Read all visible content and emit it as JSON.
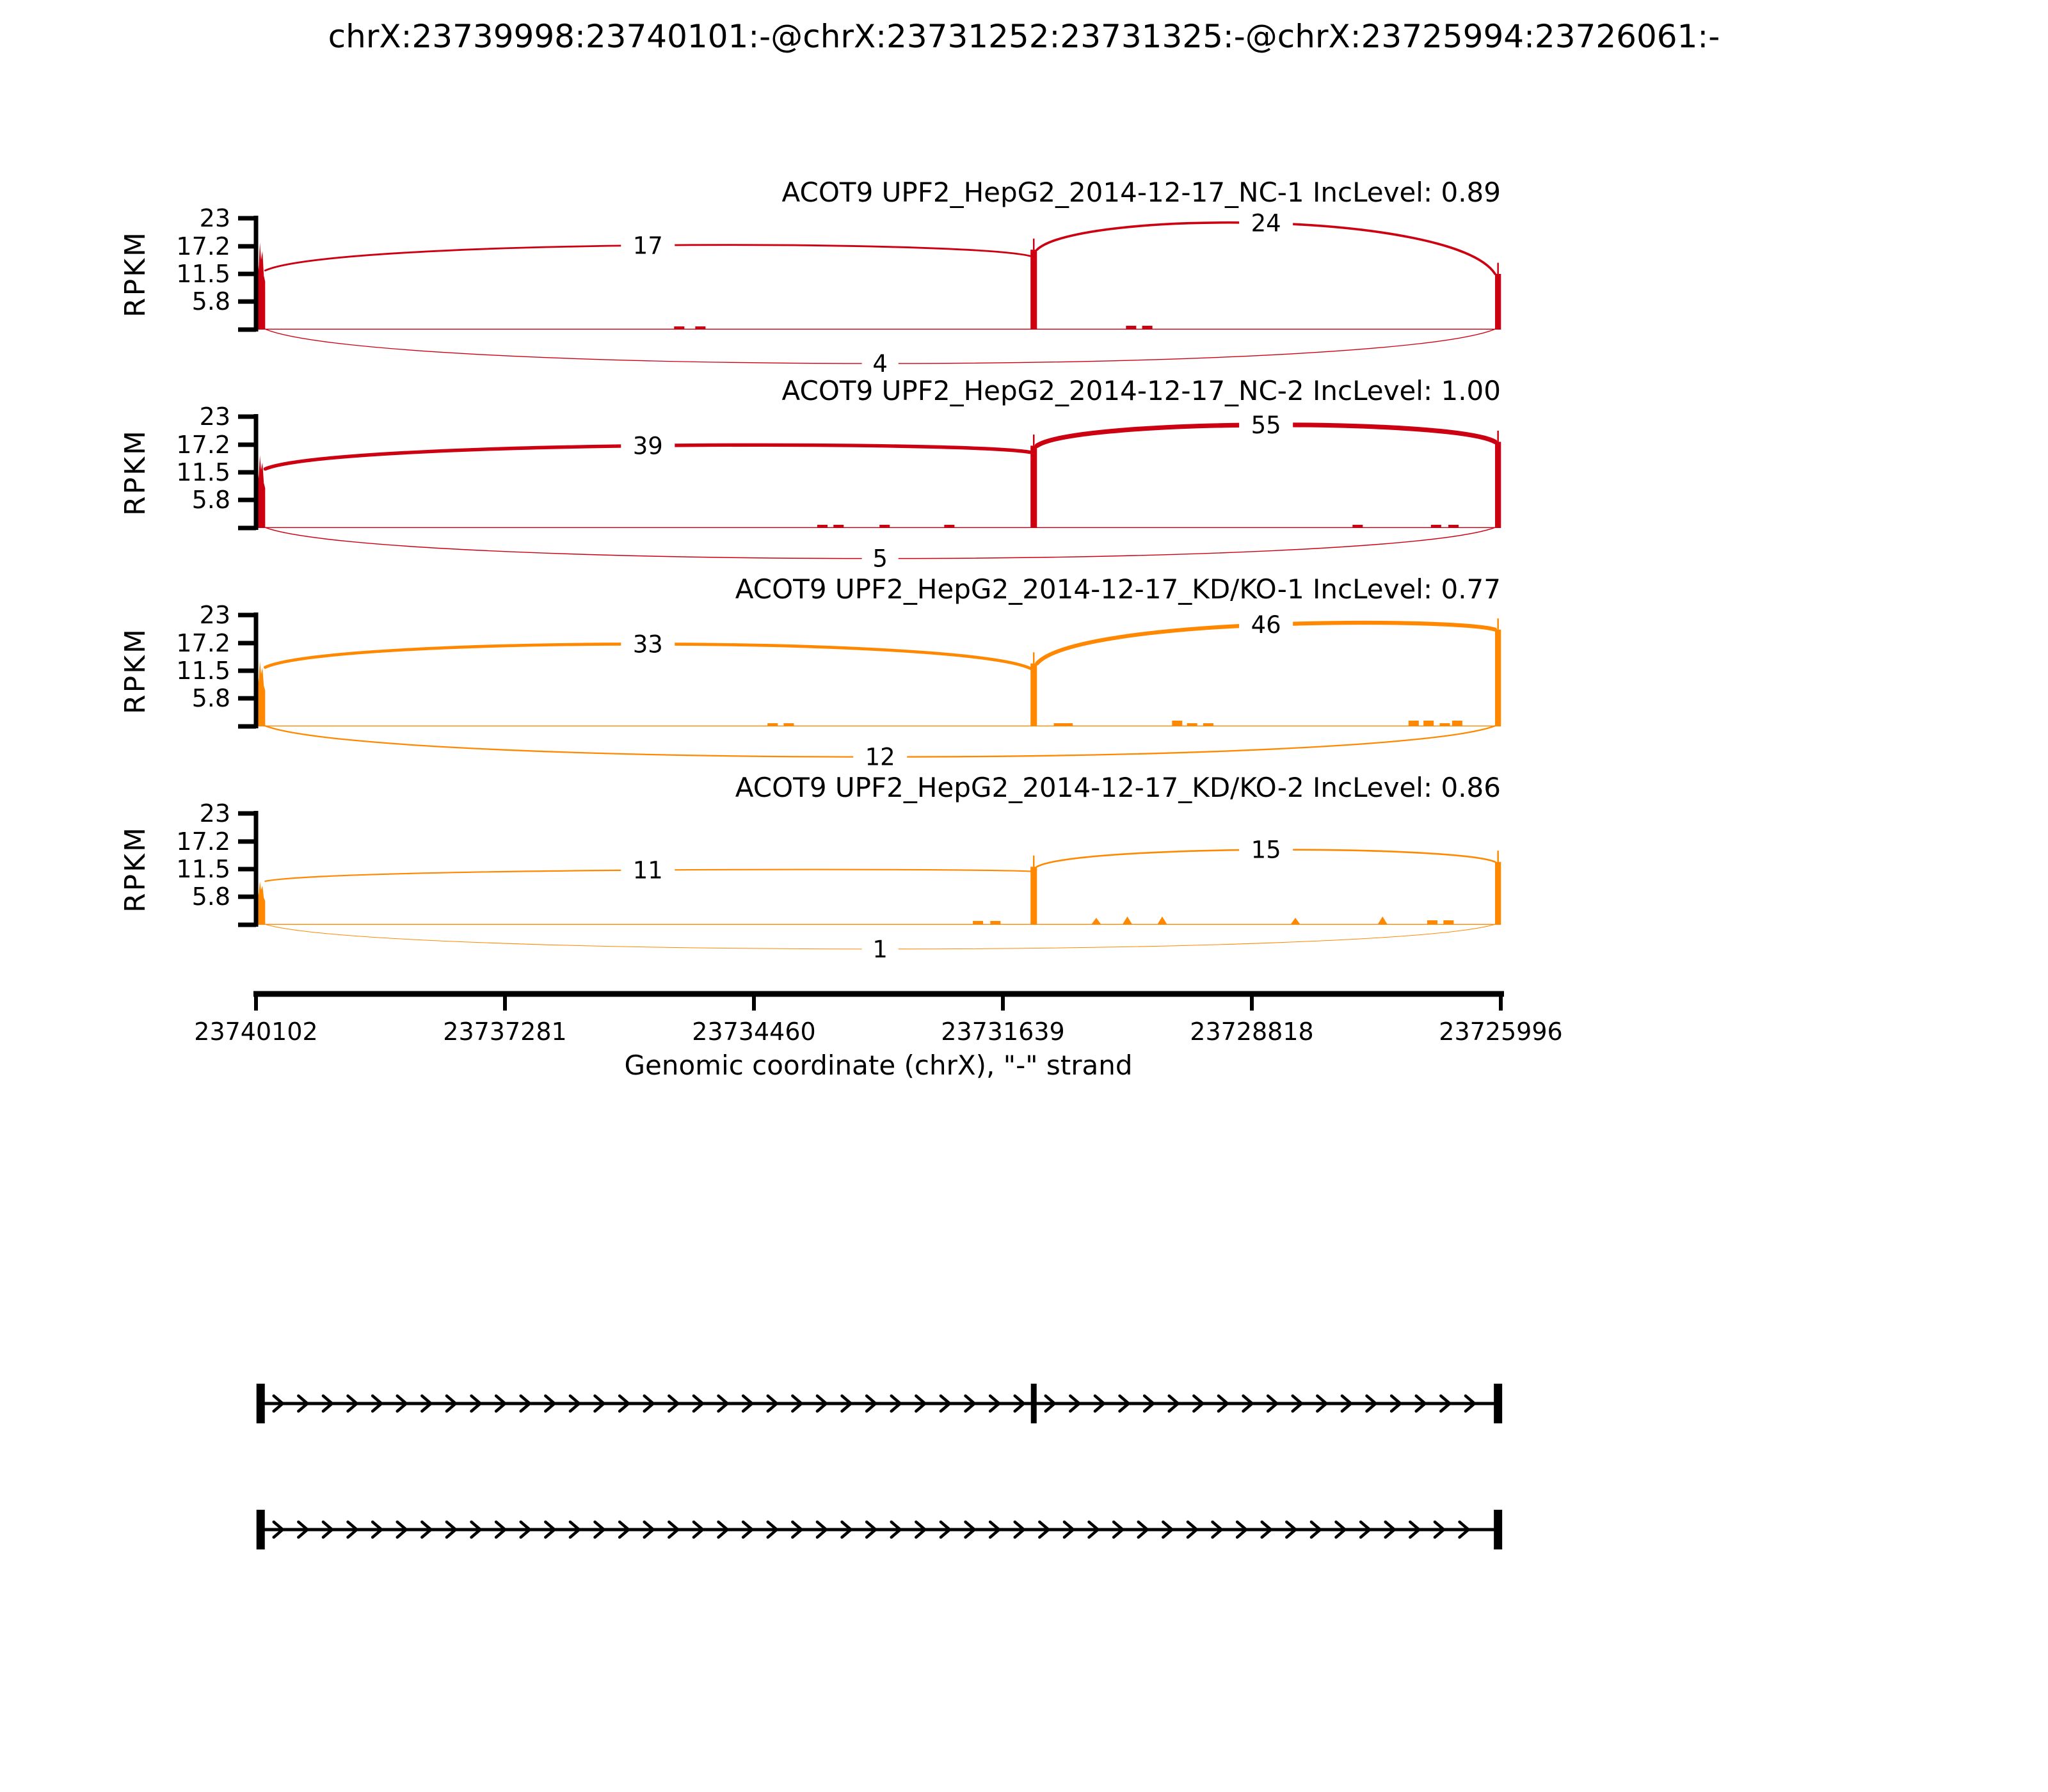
{
  "title": "chrX:23739998:23740101:-@chrX:23731252:23731325:-@chrX:23725994:23726061:-",
  "chart_data": {
    "type": "sashimi",
    "gene": "ACOT9",
    "ylabel": "RPKM",
    "xlabel": "Genomic coordinate (chrX), \"-\" strand",
    "chrom": "chrX",
    "strand": "-",
    "x_axis": {
      "start": 23740102,
      "end": 23725996,
      "tick_labels": [
        "23740102",
        "23737281",
        "23734460",
        "23731639",
        "23728818",
        "23725996"
      ]
    },
    "y_axis": {
      "max": 23,
      "ticks": [
        23,
        17.2,
        11.5,
        5.8
      ],
      "tick_labels": [
        "23",
        "17.2",
        "11.5",
        "5.8"
      ]
    },
    "exons_genomic": [
      {
        "name": "upstream-exon",
        "start": 23739998,
        "end": 23740101
      },
      {
        "name": "skipped-exon",
        "start": 23731252,
        "end": 23731325
      },
      {
        "name": "downstream-exon",
        "start": 23725994,
        "end": 23726061
      }
    ],
    "tracks": [
      {
        "label": "ACOT9 UPF2_HepG2_2014-12-17_NC-1 IncLevel: 0.89",
        "sample": "UPF2_HepG2_2014-12-17_NC-1",
        "inc_level": "0.89",
        "color": "#CC0011",
        "exon_rpkm": [
          18,
          16.5,
          11.5
        ],
        "junctions": [
          {
            "name": "upstream-to-skipped",
            "reads": 17,
            "apex_rpkm": 17.4
          },
          {
            "name": "skipped-to-downstream",
            "reads": 24,
            "apex_rpkm": 22
          },
          {
            "name": "upstream-to-downstream",
            "reads": 4,
            "apex_rpkm": -7
          }
        ],
        "intron_marks": [
          {
            "x": 0.34,
            "h": 5
          },
          {
            "x": 0.357,
            "h": 5
          },
          {
            "x": 0.703,
            "h": 6
          },
          {
            "x": 0.716,
            "h": 6
          }
        ]
      },
      {
        "label": "ACOT9 UPF2_HepG2_2014-12-17_NC-2 IncLevel: 1.00",
        "sample": "UPF2_HepG2_2014-12-17_NC-2",
        "inc_level": "1.00",
        "color": "#CC0011",
        "exon_rpkm": [
          15,
          17,
          17.8
        ],
        "junctions": [
          {
            "name": "upstream-to-skipped",
            "reads": 39,
            "apex_rpkm": 17
          },
          {
            "name": "skipped-to-downstream",
            "reads": 55,
            "apex_rpkm": 21.3
          },
          {
            "name": "upstream-to-downstream",
            "reads": 5,
            "apex_rpkm": -6.3
          }
        ],
        "intron_marks": [
          {
            "x": 0.455,
            "h": 5
          },
          {
            "x": 0.468,
            "h": 5
          },
          {
            "x": 0.505,
            "h": 5
          },
          {
            "x": 0.557,
            "h": 5
          },
          {
            "x": 0.885,
            "h": 5
          },
          {
            "x": 0.948,
            "h": 5
          },
          {
            "x": 0.962,
            "h": 5
          }
        ]
      },
      {
        "label": "ACOT9 UPF2_HepG2_2014-12-17_KD/KO-1 IncLevel: 0.77",
        "sample": "UPF2_HepG2_2014-12-17_KD/KO-1",
        "inc_level": "0.77",
        "color": "#FF8800",
        "exon_rpkm": [
          13.5,
          13,
          20
        ],
        "junctions": [
          {
            "name": "upstream-to-skipped",
            "reads": 33,
            "apex_rpkm": 17
          },
          {
            "name": "skipped-to-downstream",
            "reads": 46,
            "apex_rpkm": 21
          },
          {
            "name": "upstream-to-downstream",
            "reads": 12,
            "apex_rpkm": -6.3
          }
        ],
        "intron_marks": [
          {
            "x": 0.415,
            "h": 5
          },
          {
            "x": 0.428,
            "h": 5
          },
          {
            "x": 0.645,
            "h": 5
          },
          {
            "x": 0.652,
            "h": 5
          },
          {
            "x": 0.74,
            "h": 9
          },
          {
            "x": 0.752,
            "h": 5
          },
          {
            "x": 0.765,
            "h": 5
          },
          {
            "x": 0.93,
            "h": 9
          },
          {
            "x": 0.942,
            "h": 9
          },
          {
            "x": 0.955,
            "h": 5
          },
          {
            "x": 0.965,
            "h": 9
          }
        ]
      },
      {
        "label": "ACOT9 UPF2_HepG2_2014-12-17_KD/KO-2 IncLevel: 0.86",
        "sample": "UPF2_HepG2_2014-12-17_KD/KO-2",
        "inc_level": "0.86",
        "color": "#FF8800",
        "exon_rpkm": [
          9,
          12,
          13
        ],
        "junctions": [
          {
            "name": "upstream-to-skipped",
            "reads": 11,
            "apex_rpkm": 11.3
          },
          {
            "name": "skipped-to-downstream",
            "reads": 15,
            "apex_rpkm": 15.5
          },
          {
            "name": "upstream-to-downstream",
            "reads": 1,
            "apex_rpkm": -5
          }
        ],
        "intron_marks": [
          {
            "x": 0.58,
            "h": 6
          },
          {
            "x": 0.594,
            "h": 6
          },
          {
            "x": 0.675,
            "h": 11
          },
          {
            "x": 0.7,
            "h": 13
          },
          {
            "x": 0.728,
            "h": 13
          },
          {
            "x": 0.835,
            "h": 11
          },
          {
            "x": 0.905,
            "h": 13
          },
          {
            "x": 0.945,
            "h": 7
          },
          {
            "x": 0.958,
            "h": 7
          }
        ]
      }
    ],
    "transcripts": [
      {
        "name": "inclusion-isoform",
        "exons": [
          0,
          1,
          2
        ]
      },
      {
        "name": "skipping-isoform",
        "exons": [
          0,
          2
        ]
      }
    ]
  }
}
